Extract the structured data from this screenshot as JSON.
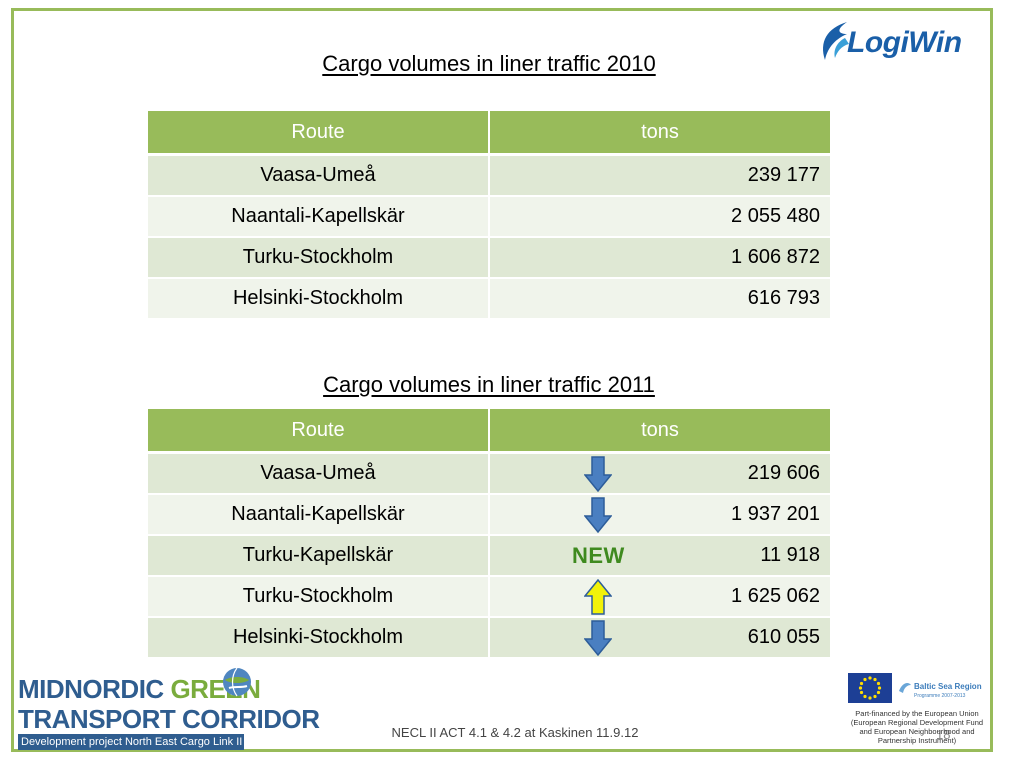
{
  "logos": {
    "logiwin": "LogiWin",
    "midnordic_line1_part1": "MIDNORDIC ",
    "midnordic_line1_part2": "GREEN",
    "midnordic_line2": "TRANSPORT CORRIDOR",
    "midnordic_line3": "Development project North East Cargo Link II",
    "bsr_title": "Baltic Sea Region",
    "bsr_subtitle": "Programme 2007-2013"
  },
  "table_2010": {
    "title": "Cargo volumes in liner traffic 2010",
    "headers": [
      "Route",
      "tons"
    ],
    "rows": [
      {
        "route": "Vaasa-Umeå",
        "tons": "239 177"
      },
      {
        "route": "Naantali-Kapellskär",
        "tons": "2 055 480"
      },
      {
        "route": "Turku-Stockholm",
        "tons": "1 606 872"
      },
      {
        "route": "Helsinki-Stockholm",
        "tons": "616 793"
      }
    ]
  },
  "table_2011": {
    "title": "Cargo volumes in liner traffic 2011",
    "headers": [
      "Route",
      "tons"
    ],
    "rows": [
      {
        "route": "Vaasa-Umeå",
        "tons": "219 606",
        "trend": "down-arrow-icon"
      },
      {
        "route": "Naantali-Kapellskär",
        "tons": "1 937 201",
        "trend": "down-arrow-icon"
      },
      {
        "route": "Turku-Kapellskär",
        "tons": "11 918",
        "trend": "new",
        "trend_label": "NEW"
      },
      {
        "route": "Turku-Stockholm",
        "tons": "1 625 062",
        "trend": "up-arrow-icon"
      },
      {
        "route": "Helsinki-Stockholm",
        "tons": "610 055",
        "trend": "down-arrow-icon"
      }
    ]
  },
  "footer": {
    "text": "NECL II ACT 4.1 & 4.2 at Kaskinen 11.9.12",
    "page_number": "18",
    "eu_funding_lines": [
      "Part-financed by the European Union",
      "(European Regional Development Fund",
      "and European Neighbourhood and",
      "Partnership Instrument)"
    ]
  },
  "colors": {
    "header_green": "#98bb5a",
    "row_odd": "#dfe8d4",
    "row_even": "#f0f4eb",
    "arrow_down": "#4a7fc1",
    "arrow_up": "#f2f20a",
    "new_label": "#3f8a1f"
  }
}
